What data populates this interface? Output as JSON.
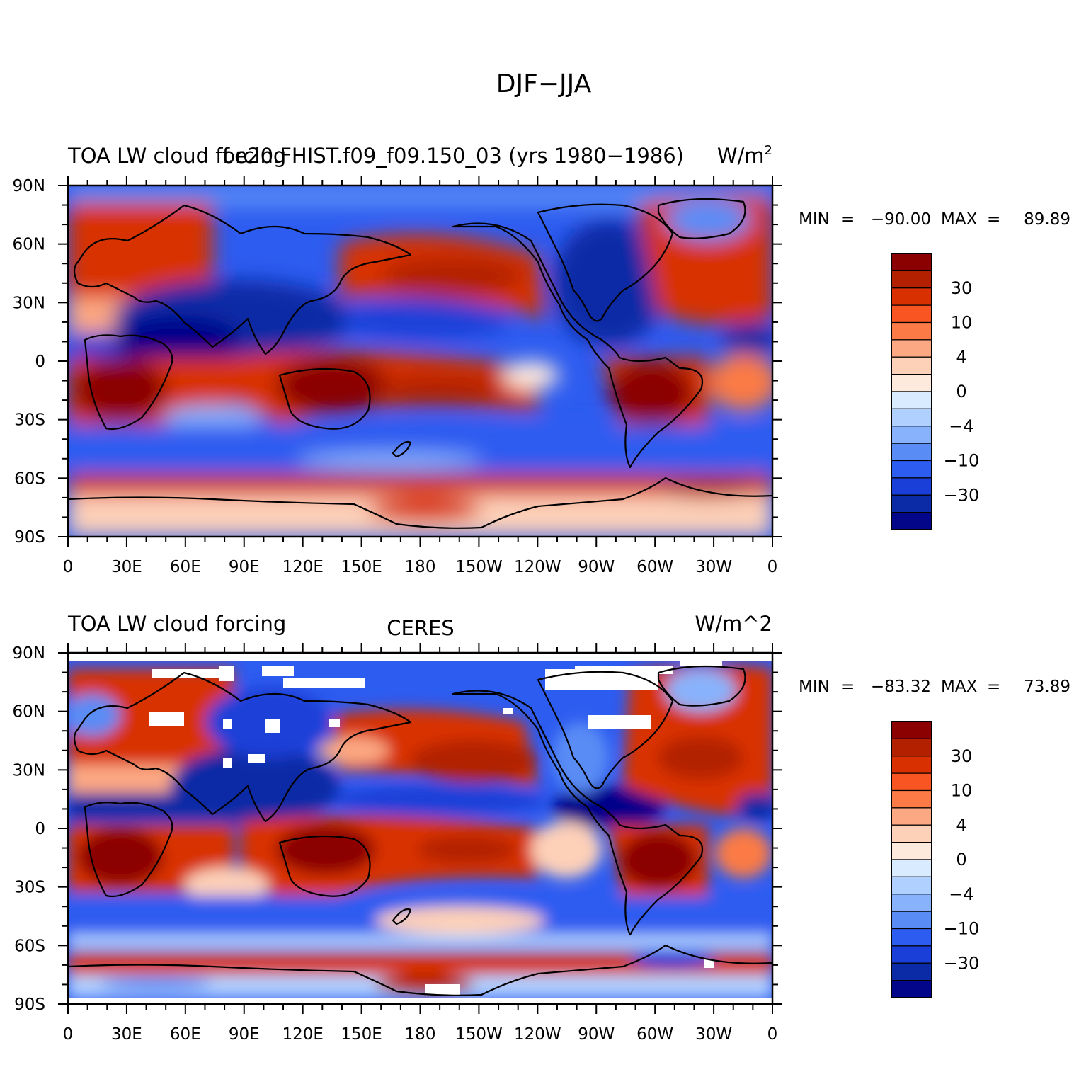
{
  "figure_title": "DJF−JJA",
  "lon_tick_labels": [
    "0",
    "30E",
    "60E",
    "90E",
    "120E",
    "150E",
    "180",
    "150W",
    "120W",
    "90W",
    "60W",
    "30W",
    "0"
  ],
  "lat_tick_labels": [
    "90N",
    "60N",
    "30N",
    "0",
    "30S",
    "60S",
    "90S"
  ],
  "colorbar_labels": [
    "30",
    "10",
    "4",
    "0",
    "−4",
    "−10",
    "−30"
  ],
  "colors": {
    "levels": [
      "#8b0000",
      "#b22000",
      "#d83000",
      "#f85522",
      "#fb7a45",
      "#fca882",
      "#fdd0b8",
      "#feeadc",
      "#d8ebff",
      "#b0d0ff",
      "#88b2fb",
      "#5a8cf5",
      "#2d5cf0",
      "#1a3fd8",
      "#0a2aa6",
      "#04068a"
    ]
  },
  "chart_data": [
    {
      "type": "heatmap",
      "left_title": "TOA LW cloud forcing",
      "center_title": "f.e20.FHIST.f09_f09.150_03 (yrs 1980−1986)",
      "units": "W/m",
      "units_superscript": "2",
      "min_label": "MIN",
      "min_value": "−90.00",
      "max_label": "MAX",
      "max_value": "89.89",
      "xlim": [
        0,
        360
      ],
      "ylim": [
        -90,
        90
      ],
      "contour_levels": [
        -50,
        -40,
        -30,
        -20,
        -10,
        -7,
        -4,
        -2,
        0,
        2,
        4,
        7,
        10,
        20,
        30,
        40,
        50
      ]
    },
    {
      "type": "heatmap",
      "left_title": "TOA LW cloud forcing",
      "center_title": "CERES",
      "units": "W/m^2",
      "min_label": "MIN",
      "min_value": "−83.32",
      "max_label": "MAX",
      "max_value": "73.89",
      "xlim": [
        0,
        360
      ],
      "ylim": [
        -90,
        90
      ],
      "contour_levels": [
        -50,
        -40,
        -30,
        -20,
        -10,
        -7,
        -4,
        -2,
        0,
        2,
        4,
        7,
        10,
        20,
        30,
        40,
        50
      ]
    }
  ]
}
